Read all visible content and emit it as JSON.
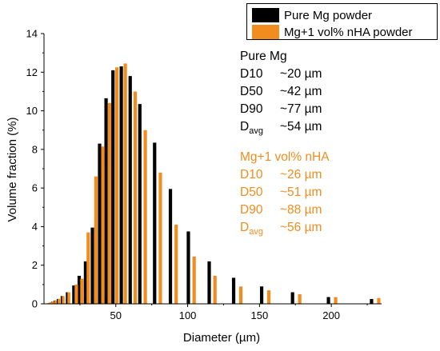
{
  "chart_data": {
    "type": "bar",
    "xlabel": "Diameter (µm)",
    "ylabel": "Volume fraction (%)",
    "xlim": [
      0,
      235
    ],
    "ylim": [
      0,
      14
    ],
    "xticks": [
      50,
      100,
      150,
      200
    ],
    "yticks": [
      0,
      2,
      4,
      6,
      8,
      10,
      12,
      14
    ],
    "grid": false,
    "legend_position": "top-right",
    "colors": {
      "pure": "#000000",
      "nha": "#f28c1e"
    },
    "series": [
      {
        "name": "Pure Mg powder",
        "x": [
          2.0,
          2.7,
          3.5,
          4.5,
          5.8,
          7.5,
          9.7,
          12.5,
          16.2,
          20.8,
          24.5,
          28.9,
          33.7,
          38.7,
          43.2,
          48.0,
          53.8,
          60.0,
          66.7,
          77.0,
          88.0,
          100.5,
          115.0,
          132.0,
          151.5,
          173.0,
          198.0,
          228.0
        ],
        "values": [
          0.01,
          0.02,
          0.04,
          0.07,
          0.11,
          0.17,
          0.25,
          0.4,
          0.6,
          0.95,
          1.45,
          2.2,
          3.95,
          8.3,
          10.65,
          12.1,
          12.3,
          11.8,
          10.35,
          8.35,
          5.95,
          3.75,
          2.2,
          1.35,
          0.9,
          0.6,
          0.35,
          0.25
        ]
      },
      {
        "name": "Mg+1 vol% nHA powder",
        "x": [
          3.0,
          3.8,
          4.9,
          6.3,
          8.1,
          10.4,
          13.4,
          17.3,
          22.5,
          26.4,
          30.8,
          36.1,
          41.0,
          45.6,
          50.7,
          56.6,
          63.5,
          70.5,
          81.0,
          92.0,
          104.5,
          119.0,
          137.0,
          156.5,
          178.0,
          203.0,
          233.0
        ],
        "values": [
          0.03,
          0.05,
          0.08,
          0.12,
          0.18,
          0.26,
          0.4,
          0.6,
          1.0,
          1.3,
          3.7,
          6.6,
          8.15,
          10.4,
          12.25,
          12.45,
          11.0,
          9.0,
          6.8,
          4.1,
          2.45,
          1.45,
          0.9,
          0.7,
          0.5,
          0.35,
          0.3
        ]
      }
    ],
    "legend": [
      "Pure Mg powder",
      "Mg+1 vol% nHA powder"
    ]
  },
  "annotations": {
    "pure": {
      "title": "Pure Mg",
      "rows": [
        {
          "key": "D10",
          "value": "~20 µm"
        },
        {
          "key": "D50",
          "value": "~42 µm"
        },
        {
          "key": "D90",
          "value": "~77 µm"
        }
      ],
      "avg_key": "D",
      "avg_sub": "avg",
      "avg_value": "~54 µm"
    },
    "nha": {
      "title": "Mg+1 vol% nHA",
      "rows": [
        {
          "key": "D10",
          "value": "~26 µm"
        },
        {
          "key": "D50",
          "value": "~51 µm"
        },
        {
          "key": "D90",
          "value": "~88 µm"
        }
      ],
      "avg_key": "D",
      "avg_sub": "avg",
      "avg_value": "~56 µm"
    }
  }
}
